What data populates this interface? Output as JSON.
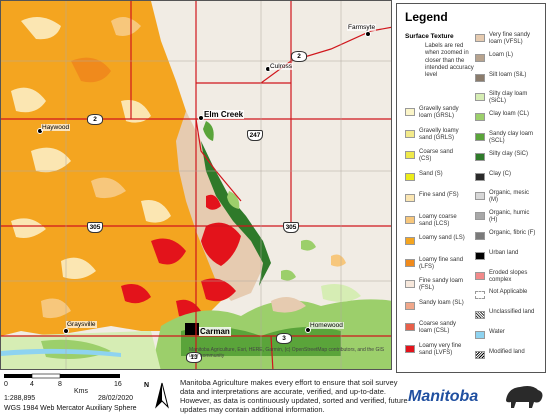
{
  "map": {
    "places": {
      "farmsyte": "Farmsyte",
      "culross": "Culross",
      "haywood": "Haywood",
      "elm_creek": "Elm Creek",
      "graysville": "Graysville",
      "carman": "Carman",
      "homewood": "Homewood"
    },
    "highways": {
      "hwy2_east": "2",
      "hwy2_west": "2",
      "hwy247": "247",
      "hwy305_west": "305",
      "hwy305_east": "305",
      "hwy3": "3",
      "hwy13": "13"
    },
    "attribution": "Manitoba Agriculture, Esri, HERE, Garmin, (c) OpenStreetMap contributors, and the GIS user community"
  },
  "legend": {
    "title": "Legend",
    "subtitle": "Surface Texture",
    "note": "Labels are red when zoomed in closer than the intended accuracy level",
    "left_items": [
      {
        "label": "Gravelly sandy loam (GRSL)",
        "color": "#fbf5c8"
      },
      {
        "label": "Gravelly loamy sand (GRLS)",
        "color": "#f3ea8a"
      },
      {
        "label": "Coarse sand (CS)",
        "color": "#efe94a"
      },
      {
        "label": "Sand (S)",
        "color": "#ecec1a"
      },
      {
        "label": "Fine sand (FS)",
        "color": "#fbe6b2"
      },
      {
        "label": "Loamy coarse sand (LCS)",
        "color": "#f7c77c"
      },
      {
        "label": "Loamy sand (LS)",
        "color": "#f4a520"
      },
      {
        "label": "Loamy fine sand (LFS)",
        "color": "#f08a1c"
      },
      {
        "label": "Fine sandy loam (FSL)",
        "color": "#f7e8dc"
      },
      {
        "label": "Sandy loam (SL)",
        "color": "#f0a78a"
      },
      {
        "label": "Coarse sandy loam (CSL)",
        "color": "#e8604a"
      },
      {
        "label": "Loamy very fine sand (LVFS)",
        "color": "#e3131b"
      }
    ],
    "right_items": [
      {
        "label": "Very fine sandy loam (VFSL)",
        "color": "#e6cbb0"
      },
      {
        "label": "Loam (L)",
        "color": "#b7a38e"
      },
      {
        "label": "Silt loam (SiL)",
        "color": "#8b7c6c"
      },
      {
        "label": "Silty clay loam (SiCL)",
        "color": "#d6edb4"
      },
      {
        "label": "Clay loam (CL)",
        "color": "#9ccf6b"
      },
      {
        "label": "Sandy clay loam (SCL)",
        "color": "#5aa43a"
      },
      {
        "label": "Silty clay (SiC)",
        "color": "#2f7a2a"
      },
      {
        "label": "Clay (C)",
        "color": "#2a2a2a"
      },
      {
        "label": "Organic, mesic (M)",
        "color": "#d8d8d8"
      },
      {
        "label": "Organic, humic (H)",
        "color": "#a8a8a8"
      },
      {
        "label": "Organic, fibric (F)",
        "color": "#7a7a7a"
      },
      {
        "label": "Urban land",
        "color": "#000000"
      },
      {
        "label": "Eroded slopes complex",
        "color": "#f28a8a"
      },
      {
        "label": "Not Applicable",
        "color": "#ffffff"
      },
      {
        "label": "Unclassified land",
        "color": "#ffffff"
      },
      {
        "label": "Water",
        "color": "#8ed3f0"
      },
      {
        "label": "Modified land",
        "color": "#ffffff"
      }
    ]
  },
  "footer": {
    "scale_ticks": [
      "0",
      "4",
      "8",
      "16"
    ],
    "scale_unit": "Kms",
    "scale_ratio": "1:288,895",
    "date": "28/02/2020",
    "projection": "WGS 1984 Web Mercator Auxiliary Sphere",
    "north_label": "N",
    "disclaimer": "Manitoba Agriculture makes every effort to ensure that soil survey data and interpretations are accurate, verified, and up-to-date.  However, as data is continuously updated, sorted and verified, future updates may contain additional information.",
    "logo_text": "Manitoba"
  },
  "colors": {
    "orange": "#f4a520",
    "red": "#e3131b",
    "green_dark": "#2f7a2a",
    "highway_red": "#d0161c",
    "brand_blue": "#1f4fa0"
  }
}
